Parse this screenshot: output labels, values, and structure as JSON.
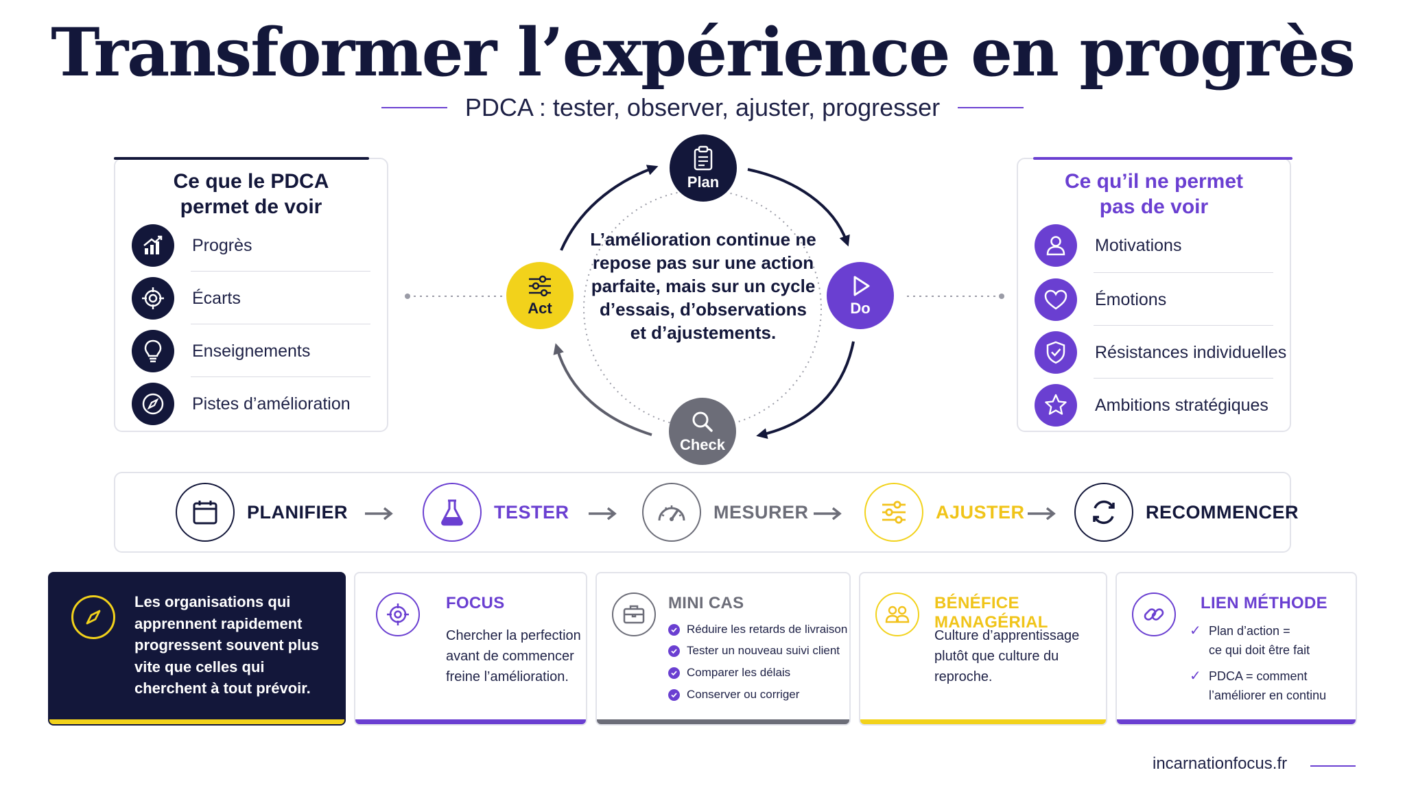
{
  "header": {
    "title": "Transformer l’expérience en progrès",
    "subtitle": "PDCA : tester, observer, ajuster, progresser"
  },
  "colors": {
    "navy": "#13173a",
    "purple": "#6a3fd1",
    "yellow": "#f2d21b",
    "gray": "#6c6d78",
    "border": "#e2e3ea"
  },
  "left_card": {
    "title_line1": "Ce que le PDCA",
    "title_line2": "permet de voir",
    "items": [
      {
        "label": "Progrès",
        "icon": "chart-growth-icon"
      },
      {
        "label": "Écarts",
        "icon": "target-icon"
      },
      {
        "label": "Enseignements",
        "icon": "lightbulb-icon"
      },
      {
        "label": "Pistes d’amélioration",
        "icon": "compass-icon"
      }
    ]
  },
  "right_card": {
    "title_line1": "Ce qu’il ne permet",
    "title_line2": "pas de voir",
    "items": [
      {
        "label": "Motivations",
        "icon": "person-icon"
      },
      {
        "label": "Émotions",
        "icon": "heart-icon"
      },
      {
        "label": "Résistances individuelles",
        "icon": "shield-check-icon"
      },
      {
        "label": "Ambitions stratégiques",
        "icon": "star-icon"
      }
    ]
  },
  "cycle": {
    "plan": "Plan",
    "do": "Do",
    "check": "Check",
    "act": "Act",
    "center_text": "L’amélioration continue ne repose pas sur une action parfaite, mais sur un cycle d’essais, d’observations et d’ajustements."
  },
  "process": {
    "steps": [
      {
        "label": "PLANIFIER",
        "icon": "calendar-icon"
      },
      {
        "label": "TESTER",
        "icon": "flask-icon"
      },
      {
        "label": "MESURER",
        "icon": "gauge-icon"
      },
      {
        "label": "AJUSTER",
        "icon": "sliders-icon"
      },
      {
        "label": "RECOMMENCER",
        "icon": "refresh-icon"
      }
    ]
  },
  "cards": {
    "intro": {
      "text": "Les organisations qui apprennent rapidement progressent souvent plus vite que celles qui cherchent à tout prévoir."
    },
    "focus": {
      "title": "FOCUS",
      "text": "Chercher la perfection avant de commencer freine l’amélioration."
    },
    "mini_cas": {
      "title": "MINI CAS",
      "items": [
        "Réduire les retards de livraison",
        "Tester un nouveau suivi client",
        "Comparer les délais",
        "Conserver ou corriger"
      ]
    },
    "benefice": {
      "title": "BÉNÉFICE MANAGÉRIAL",
      "text": "Culture d’apprentissage plutôt que culture du reproche."
    },
    "lien": {
      "title": "LIEN MÉTHODE",
      "item1_line1": "Plan d’action =",
      "item1_line2": "ce qui doit être fait",
      "item2_line1": "PDCA = comment",
      "item2_line2": "l’améliorer en continu"
    }
  },
  "footer": {
    "site": "incarnationfocus.fr"
  }
}
